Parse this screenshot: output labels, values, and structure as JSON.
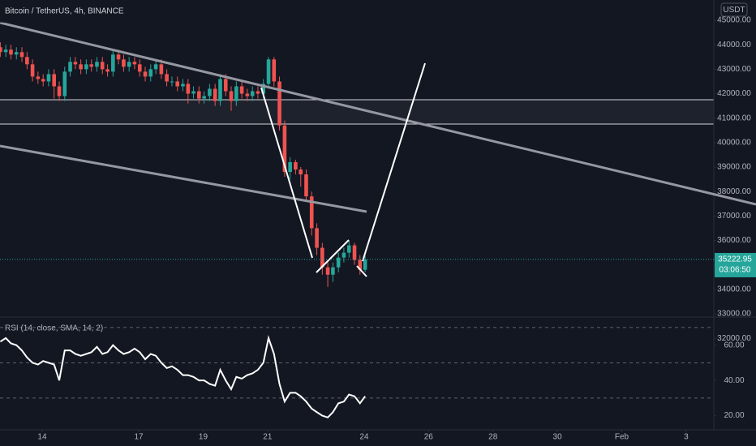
{
  "chart_data": {
    "type": "candlestick",
    "title": "Bitcoin / TetherUS, 4h, BINANCE",
    "currency": "USDT",
    "countdown": "03:06:50",
    "up_color": "#26a69a",
    "down_color": "#ef5350",
    "x": [
      12.7,
      12.87,
      13.03,
      13.2,
      13.37,
      13.53,
      13.7,
      13.87,
      14.03,
      14.2,
      14.37,
      14.53,
      14.7,
      14.87,
      15.03,
      15.2,
      15.37,
      15.53,
      15.7,
      15.87,
      16.03,
      16.2,
      16.37,
      16.53,
      16.7,
      16.87,
      17.03,
      17.2,
      17.37,
      17.53,
      17.7,
      17.87,
      18.03,
      18.2,
      18.37,
      18.53,
      18.7,
      18.87,
      19.03,
      19.2,
      19.37,
      19.53,
      19.7,
      19.87,
      20.03,
      20.2,
      20.37,
      20.53,
      20.7,
      20.87,
      21.03,
      21.2,
      21.37,
      21.53,
      21.7,
      21.87,
      22.03,
      22.2,
      22.37,
      22.53,
      22.7,
      22.87,
      23.03,
      23.2,
      23.37,
      23.53,
      23.7,
      23.87,
      24.03
    ],
    "open": [
      43900,
      43700,
      43800,
      43600,
      43700,
      43500,
      43200,
      42700,
      42600,
      42500,
      42800,
      42300,
      41900,
      42900,
      43300,
      43200,
      43000,
      43200,
      43100,
      43300,
      43000,
      42900,
      43600,
      43400,
      43100,
      43300,
      43200,
      42900,
      42700,
      43000,
      43200,
      42800,
      42500,
      42500,
      42300,
      42400,
      42000,
      42100,
      41800,
      41900,
      42200,
      41700,
      42600,
      42100,
      41700,
      42300,
      42000,
      41900,
      42100,
      42000,
      42400,
      43400,
      42500,
      40700,
      38800,
      39200,
      38900,
      38700,
      37800,
      36500,
      35700,
      34900,
      34600,
      34900,
      35300,
      35500,
      35800,
      35200,
      34800
    ],
    "high": [
      44100,
      44000,
      44000,
      43900,
      43900,
      43700,
      43400,
      42900,
      42800,
      43000,
      43000,
      42500,
      43100,
      43500,
      43500,
      43400,
      43400,
      43400,
      43500,
      43500,
      43200,
      43800,
      43800,
      43600,
      43500,
      43500,
      43400,
      43100,
      43200,
      43400,
      43400,
      43000,
      42700,
      42700,
      42600,
      42600,
      42300,
      42300,
      42100,
      42400,
      42400,
      42800,
      42800,
      42300,
      42500,
      42500,
      42200,
      42300,
      42300,
      42600,
      43500,
      43500,
      42700,
      40900,
      39400,
      39300,
      39000,
      38900,
      38000,
      36700,
      35900,
      35100,
      35100,
      35500,
      35700,
      36000,
      35900,
      35400,
      35400
    ],
    "low": [
      43500,
      43500,
      43400,
      43400,
      43300,
      43000,
      42500,
      42400,
      42300,
      42300,
      41800,
      41700,
      41700,
      42700,
      43000,
      42800,
      42800,
      42900,
      42900,
      42800,
      42700,
      42700,
      43200,
      42900,
      42900,
      43000,
      42700,
      42500,
      42500,
      42800,
      42600,
      42300,
      42300,
      42100,
      42100,
      41600,
      41800,
      41600,
      41600,
      41700,
      41500,
      41500,
      41900,
      41300,
      41500,
      41800,
      41700,
      41700,
      41800,
      41800,
      42200,
      42300,
      40500,
      38600,
      38500,
      38700,
      38200,
      37600,
      36200,
      35400,
      34600,
      34100,
      34300,
      34700,
      35100,
      35300,
      35000,
      34600,
      34700
    ],
    "close": [
      43700,
      43800,
      43600,
      43700,
      43500,
      43200,
      42700,
      42600,
      42500,
      42800,
      42300,
      41900,
      42900,
      43300,
      43200,
      43000,
      43200,
      43100,
      43300,
      43000,
      42900,
      43600,
      43400,
      43100,
      43300,
      43200,
      42900,
      42700,
      43000,
      43200,
      42800,
      42500,
      42500,
      42300,
      42400,
      42000,
      42100,
      41800,
      41900,
      42200,
      41700,
      42600,
      42100,
      41700,
      42300,
      42000,
      41900,
      42100,
      42000,
      42400,
      43400,
      42500,
      40700,
      38800,
      39200,
      38900,
      38700,
      37800,
      36500,
      35700,
      34900,
      34600,
      34900,
      35300,
      35500,
      35800,
      35200,
      34800,
      35222.95
    ],
    "xlim": [
      12.69,
      34.86
    ],
    "xticks": [
      14,
      17,
      19,
      21,
      24,
      26,
      28,
      30,
      {
        "value": 32,
        "label": "Feb"
      },
      {
        "value": 34,
        "label": "3"
      }
    ],
    "ylim": [
      32900,
      45830
    ],
    "yticks": [
      {
        "value": 32000,
        "label": "32000.00"
      },
      {
        "value": 33000,
        "label": "33000.00"
      },
      {
        "value": 34000,
        "label": "34000.00"
      },
      {
        "value": 35000,
        "label": "35000.00"
      },
      {
        "value": 36000,
        "label": "36000.00"
      },
      {
        "value": 37000,
        "label": "37000.00"
      },
      {
        "value": 38000,
        "label": "38000.00"
      },
      {
        "value": 39000,
        "label": "39000.00"
      },
      {
        "value": 40000,
        "label": "40000.00"
      },
      {
        "value": 41000,
        "label": "41000.00"
      },
      {
        "value": 42000,
        "label": "42000.00"
      },
      {
        "value": 43000,
        "label": "43000.00"
      },
      {
        "value": 44000,
        "label": "44000.00"
      },
      {
        "value": 45000,
        "label": "45000.00"
      }
    ],
    "indicator": {
      "type": "line",
      "label": "RSI (14, close, SMA, 14, 2)",
      "color": "#ffffff",
      "values": [
        62,
        64,
        61,
        60,
        57,
        53,
        50,
        49,
        51,
        50,
        49,
        40,
        57,
        57,
        55,
        54,
        55,
        56,
        59,
        55,
        56,
        60,
        57,
        55,
        56,
        58,
        56,
        52,
        55,
        54,
        50,
        47,
        48,
        46,
        43,
        43,
        42,
        40,
        40,
        38,
        37,
        46,
        40,
        35,
        42,
        41,
        43,
        44,
        46,
        50,
        64,
        55,
        38,
        28,
        33,
        33,
        31,
        28,
        24,
        22,
        20,
        19,
        22,
        27,
        28,
        32,
        31,
        27,
        31
      ],
      "ylim": [
        12,
        75
      ],
      "yticks": [
        {
          "value": 20,
          "label": "20.00"
        },
        {
          "value": 40,
          "label": "40.00"
        },
        {
          "value": 60,
          "label": "60.00"
        }
      ],
      "levels": [
        70,
        50,
        30
      ]
    }
  }
}
